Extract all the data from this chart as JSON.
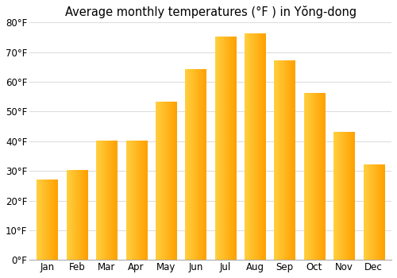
{
  "title": "Average monthly temperatures (°F ) in Yŏng-dong",
  "months": [
    "Jan",
    "Feb",
    "Mar",
    "Apr",
    "May",
    "Jun",
    "Jul",
    "Aug",
    "Sep",
    "Oct",
    "Nov",
    "Dec"
  ],
  "values": [
    27,
    30,
    40,
    40,
    53,
    64,
    75,
    76,
    67,
    56,
    43,
    32
  ],
  "bar_color_left": "#FFD040",
  "bar_color_right": "#FFA000",
  "ylim": [
    0,
    80
  ],
  "yticks": [
    0,
    10,
    20,
    30,
    40,
    50,
    60,
    70,
    80
  ],
  "ytick_labels": [
    "0°F",
    "10°F",
    "20°F",
    "30°F",
    "40°F",
    "50°F",
    "60°F",
    "70°F",
    "80°F"
  ],
  "background_color": "#ffffff",
  "grid_color": "#dddddd",
  "title_fontsize": 10.5,
  "tick_fontsize": 8.5,
  "bar_width": 0.7
}
